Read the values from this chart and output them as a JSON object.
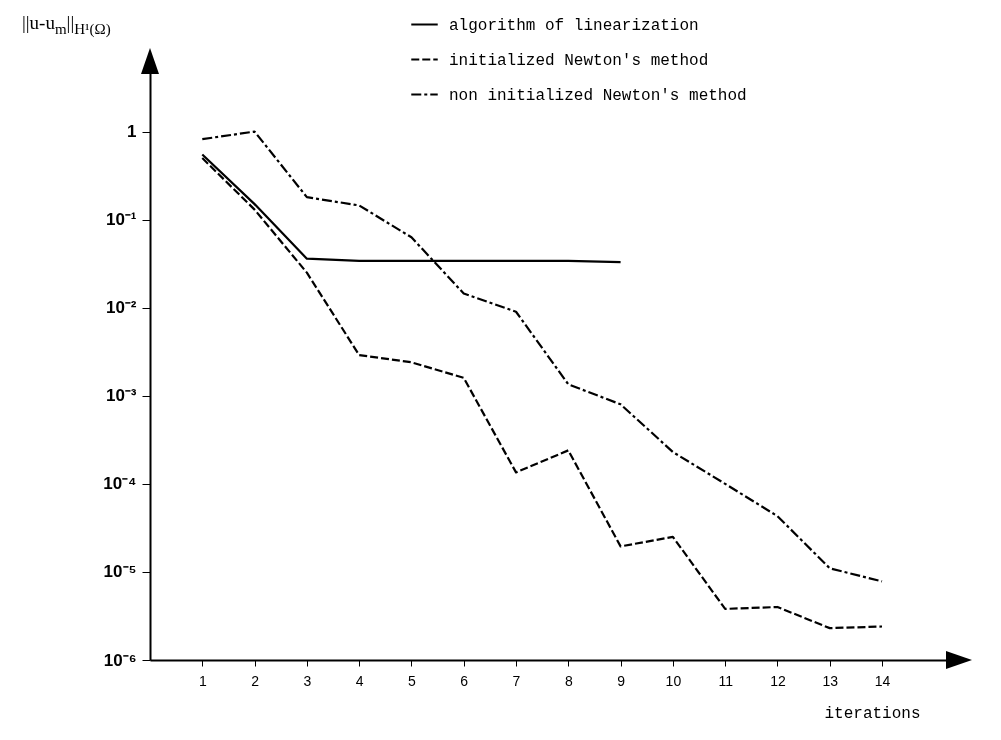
{
  "chart_data": {
    "type": "line",
    "ylabel": "||u-u$_{m}$||$_{H¹(Ω)}$",
    "xlabel": "iterations",
    "x": [
      1,
      2,
      3,
      4,
      5,
      6,
      7,
      8,
      9,
      10,
      11,
      12,
      13,
      14
    ],
    "series": [
      {
        "name": "algorithm of linearization",
        "color": "#000000",
        "line_style": "solid",
        "x": [
          1,
          2,
          3,
          4,
          5,
          6,
          7,
          8,
          9
        ],
        "values": [
          0.55,
          0.15,
          0.036,
          0.034,
          0.034,
          0.034,
          0.034,
          0.034,
          0.033
        ]
      },
      {
        "name": "initialized Newton's method",
        "color": "#000000",
        "line_style": "dashed",
        "values": [
          0.5,
          0.13,
          0.025,
          0.0029,
          0.0024,
          0.0016,
          0.000135,
          0.00024,
          1.95e-05,
          2.5e-05,
          3.8e-06,
          4e-06,
          2.3e-06,
          2.4e-06
        ]
      },
      {
        "name": "non initialized Newton's method",
        "color": "#000000",
        "line_style": "dashdot",
        "values": [
          0.82,
          1.0,
          0.18,
          0.145,
          0.063,
          0.0145,
          0.009,
          0.00135,
          0.0008,
          0.00023,
          0.0001,
          4.3e-05,
          1.1e-05,
          7.8e-06
        ]
      }
    ],
    "xlim": [
      0,
      15.3
    ],
    "xticks": [
      1,
      2,
      3,
      4,
      5,
      6,
      7,
      8,
      9,
      10,
      11,
      12,
      13,
      14
    ],
    "ylim": [
      1e-06,
      5
    ],
    "yticks": [
      {
        "value": 1,
        "label": "1"
      },
      {
        "value": 0.1,
        "label": "10⁻¹"
      },
      {
        "value": 0.01,
        "label": "10⁻²"
      },
      {
        "value": 0.001,
        "label": "10⁻³"
      },
      {
        "value": 0.0001,
        "label": "10⁻⁴"
      },
      {
        "value": 1e-05,
        "label": "10⁻⁵"
      },
      {
        "value": 1e-06,
        "label": "10⁻⁶"
      }
    ],
    "log": true,
    "grid": false,
    "legend": "top right"
  }
}
